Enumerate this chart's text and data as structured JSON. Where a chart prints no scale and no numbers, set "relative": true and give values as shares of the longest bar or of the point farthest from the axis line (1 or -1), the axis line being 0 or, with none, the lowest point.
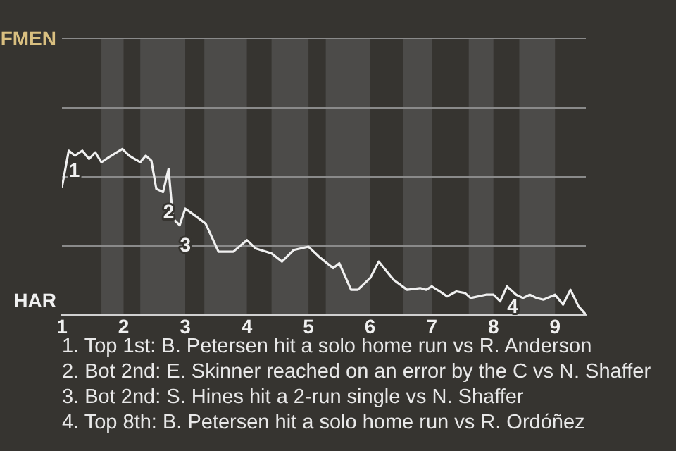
{
  "chart_data": {
    "type": "line",
    "relative": true,
    "x": [
      1,
      1.11,
      1.21,
      1.33,
      1.44,
      1.54,
      1.64,
      1.76,
      1.89,
      1.98,
      2.09,
      2.18,
      2.27,
      2.36,
      2.45,
      2.53,
      2.64,
      2.73,
      2.8,
      2.91,
      3,
      3.15,
      3.33,
      3.54,
      3.78,
      4,
      4.14,
      4.4,
      4.57,
      4.76,
      5,
      5.17,
      5.4,
      5.5,
      5.69,
      5.8,
      6,
      6.14,
      6.38,
      6.6,
      6.81,
      6.91,
      7,
      7.13,
      7.25,
      7.4,
      7.54,
      7.63,
      7.88,
      8,
      8.11,
      8.22,
      8.37,
      8.48,
      8.59,
      8.7,
      8.81,
      9,
      9.13,
      9.25,
      9.38,
      9.5
    ],
    "series": [
      {
        "color": "#f0f0f0",
        "values": [
          0.77,
          0.99,
          0.96,
          0.99,
          0.94,
          0.98,
          0.92,
          0.95,
          0.98,
          1,
          0.96,
          0.94,
          0.92,
          0.96,
          0.93,
          0.76,
          0.74,
          0.88,
          0.58,
          0.54,
          0.64,
          0.6,
          0.55,
          0.38,
          0.38,
          0.45,
          0.4,
          0.37,
          0.32,
          0.39,
          0.41,
          0.35,
          0.28,
          0.31,
          0.15,
          0.15,
          0.22,
          0.32,
          0.21,
          0.15,
          0.16,
          0.15,
          0.17,
          0.14,
          0.11,
          0.14,
          0.13,
          0.1,
          0.12,
          0.12,
          0.08,
          0.17,
          0.12,
          0.1,
          0.12,
          0.1,
          0.09,
          0.12,
          0.06,
          0.15,
          0.05,
          0
        ]
      }
    ],
    "xlim": [
      1,
      9.5
    ],
    "xticks": [
      1,
      2,
      3,
      4,
      5,
      6,
      7,
      8,
      9
    ],
    "ref_lines": [
      {
        "axis": "y",
        "value": 0.42,
        "color": "#8a8a8a"
      },
      {
        "axis": "y",
        "value": 0.84,
        "color": "#8a8a8a"
      },
      {
        "axis": "y",
        "value": 1.25,
        "color": "#8a8a8a"
      },
      {
        "axis": "y",
        "value": 1.67,
        "color": "#8a8a8a"
      }
    ],
    "legend": false,
    "marker": "none",
    "line_style": "solid",
    "bands": [
      {
        "axis": "x",
        "from": 1.64,
        "to": 2,
        "color": "#4c4b49"
      },
      {
        "axis": "x",
        "from": 2.27,
        "to": 3,
        "color": "#4c4b49"
      },
      {
        "axis": "x",
        "from": 3.31,
        "to": 4,
        "color": "#4c4b49"
      },
      {
        "axis": "x",
        "from": 4.4,
        "to": 5,
        "color": "#4c4b49"
      },
      {
        "axis": "x",
        "from": 5.28,
        "to": 6,
        "color": "#4c4b49"
      },
      {
        "axis": "x",
        "from": 6.54,
        "to": 7,
        "color": "#4c4b49"
      },
      {
        "axis": "x",
        "from": 7.6,
        "to": 8,
        "color": "#4c4b49"
      },
      {
        "axis": "x",
        "from": 8.42,
        "to": 9,
        "color": "#4c4b49"
      }
    ],
    "annotations": [
      "FMEN",
      "HAR",
      {
        "text": "1",
        "x": 1.11,
        "y": 0.99
      },
      {
        "text": "2",
        "x": 2.64,
        "y": 0.74
      },
      {
        "text": "3",
        "x": 2.91,
        "y": 0.54
      },
      {
        "text": "4",
        "x": 8.22,
        "y": 0.17
      },
      "1. Top 1st: B. Petersen hit a solo home run vs R. Anderson",
      "2. Bot 2nd: E. Skinner reached on an error by the C vs N. Shaffer",
      "3. Bot 2nd: S. Hines hit a 2-run single vs N. Shaffer",
      "4. Top 8th: B. Petersen hit a solo home run vs R. Ordóñez"
    ]
  }
}
